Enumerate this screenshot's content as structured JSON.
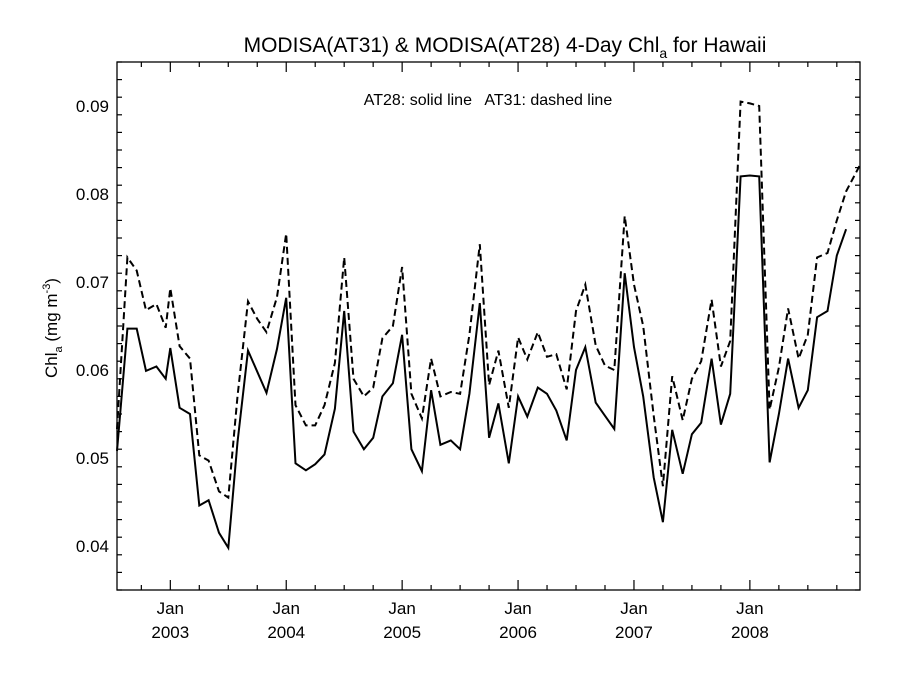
{
  "chart_data": {
    "type": "line",
    "title": "MODISA(AT31) & MODISA(AT28) 4-Day Chl",
    "title_sub": "a",
    "title_suffix": " for Hawaii",
    "annotation": "AT28: solid line   AT31: dashed line",
    "ylabel": "Chl",
    "ylabel_sub": "a",
    "ylabel_units": " (mg m",
    "ylabel_sup": "-3",
    "ylabel_close": ")",
    "xlim": [
      2002.54,
      2008.95
    ],
    "ylim": [
      0.035,
      0.095
    ],
    "yticks": [
      0.04,
      0.05,
      0.06,
      0.07,
      0.08,
      0.09
    ],
    "ytick_labels": [
      "0.04",
      "0.05",
      "0.06",
      "0.07",
      "0.08",
      "0.09"
    ],
    "xticks": [
      {
        "x": 2003,
        "month": "Jan",
        "year": "2003"
      },
      {
        "x": 2004,
        "month": "Jan",
        "year": "2004"
      },
      {
        "x": 2005,
        "month": "Jan",
        "year": "2005"
      },
      {
        "x": 2006,
        "month": "Jan",
        "year": "2006"
      },
      {
        "x": 2007,
        "month": "Jan",
        "year": "2007"
      },
      {
        "x": 2008,
        "month": "Jan",
        "year": "2008"
      }
    ],
    "series": [
      {
        "name": "AT28",
        "style": "solid",
        "color": "#000000",
        "points": [
          [
            2002.54,
            0.0508
          ],
          [
            2002.63,
            0.0647
          ],
          [
            2002.71,
            0.0647
          ],
          [
            2002.79,
            0.0599
          ],
          [
            2002.88,
            0.0604
          ],
          [
            2002.96,
            0.059
          ],
          [
            2003.0,
            0.0625
          ],
          [
            2003.08,
            0.0557
          ],
          [
            2003.17,
            0.055
          ],
          [
            2003.25,
            0.0446
          ],
          [
            2003.33,
            0.0452
          ],
          [
            2003.42,
            0.0415
          ],
          [
            2003.5,
            0.0398
          ],
          [
            2003.58,
            0.0518
          ],
          [
            2003.67,
            0.0622
          ],
          [
            2003.75,
            0.0598
          ],
          [
            2003.83,
            0.0574
          ],
          [
            2003.92,
            0.0624
          ],
          [
            2004.0,
            0.0682
          ],
          [
            2004.08,
            0.0494
          ],
          [
            2004.17,
            0.0486
          ],
          [
            2004.25,
            0.0493
          ],
          [
            2004.33,
            0.0504
          ],
          [
            2004.42,
            0.0556
          ],
          [
            2004.5,
            0.0667
          ],
          [
            2004.58,
            0.053
          ],
          [
            2004.67,
            0.051
          ],
          [
            2004.75,
            0.0523
          ],
          [
            2004.83,
            0.057
          ],
          [
            2004.92,
            0.0585
          ],
          [
            2005.0,
            0.064
          ],
          [
            2005.08,
            0.051
          ],
          [
            2005.17,
            0.0485
          ],
          [
            2005.25,
            0.0577
          ],
          [
            2005.33,
            0.0515
          ],
          [
            2005.42,
            0.052
          ],
          [
            2005.5,
            0.051
          ],
          [
            2005.58,
            0.0573
          ],
          [
            2005.67,
            0.0676
          ],
          [
            2005.75,
            0.0523
          ],
          [
            2005.83,
            0.0562
          ],
          [
            2005.92,
            0.0494
          ],
          [
            2006.0,
            0.057
          ],
          [
            2006.08,
            0.0547
          ],
          [
            2006.17,
            0.058
          ],
          [
            2006.25,
            0.0573
          ],
          [
            2006.33,
            0.0554
          ],
          [
            2006.42,
            0.052
          ],
          [
            2006.5,
            0.06
          ],
          [
            2006.58,
            0.0626
          ],
          [
            2006.67,
            0.0563
          ],
          [
            2006.75,
            0.0548
          ],
          [
            2006.83,
            0.0533
          ],
          [
            2006.92,
            0.071
          ],
          [
            2007.0,
            0.0626
          ],
          [
            2007.08,
            0.057
          ],
          [
            2007.17,
            0.0478
          ],
          [
            2007.25,
            0.0427
          ],
          [
            2007.33,
            0.0532
          ],
          [
            2007.42,
            0.0482
          ],
          [
            2007.5,
            0.0527
          ],
          [
            2007.58,
            0.054
          ],
          [
            2007.67,
            0.0613
          ],
          [
            2007.75,
            0.0538
          ],
          [
            2007.83,
            0.0573
          ],
          [
            2007.92,
            0.082
          ],
          [
            2008.0,
            0.0821
          ],
          [
            2008.08,
            0.082
          ],
          [
            2008.17,
            0.0495
          ],
          [
            2008.25,
            0.055
          ],
          [
            2008.33,
            0.0613
          ],
          [
            2008.42,
            0.0557
          ],
          [
            2008.5,
            0.0577
          ],
          [
            2008.58,
            0.066
          ],
          [
            2008.67,
            0.0667
          ],
          [
            2008.75,
            0.073
          ],
          [
            2008.83,
            0.076
          ]
        ]
      },
      {
        "name": "AT31",
        "style": "dashed",
        "color": "#000000",
        "points": [
          [
            2002.54,
            0.0533
          ],
          [
            2002.63,
            0.0728
          ],
          [
            2002.71,
            0.0713
          ],
          [
            2002.79,
            0.0668
          ],
          [
            2002.88,
            0.0675
          ],
          [
            2002.96,
            0.0648
          ],
          [
            2003.0,
            0.0693
          ],
          [
            2003.08,
            0.0627
          ],
          [
            2003.17,
            0.0613
          ],
          [
            2003.25,
            0.0503
          ],
          [
            2003.33,
            0.0497
          ],
          [
            2003.42,
            0.0462
          ],
          [
            2003.5,
            0.0455
          ],
          [
            2003.58,
            0.057
          ],
          [
            2003.67,
            0.0678
          ],
          [
            2003.75,
            0.0658
          ],
          [
            2003.83,
            0.0643
          ],
          [
            2003.92,
            0.0683
          ],
          [
            2004.0,
            0.0755
          ],
          [
            2004.08,
            0.056
          ],
          [
            2004.17,
            0.0537
          ],
          [
            2004.25,
            0.0537
          ],
          [
            2004.33,
            0.056
          ],
          [
            2004.42,
            0.0608
          ],
          [
            2004.5,
            0.0728
          ],
          [
            2004.58,
            0.059
          ],
          [
            2004.67,
            0.057
          ],
          [
            2004.75,
            0.058
          ],
          [
            2004.83,
            0.0636
          ],
          [
            2004.92,
            0.065
          ],
          [
            2005.0,
            0.0717
          ],
          [
            2005.08,
            0.0573
          ],
          [
            2005.17,
            0.0545
          ],
          [
            2005.25,
            0.0613
          ],
          [
            2005.33,
            0.057
          ],
          [
            2005.42,
            0.0575
          ],
          [
            2005.5,
            0.0573
          ],
          [
            2005.58,
            0.064
          ],
          [
            2005.67,
            0.0743
          ],
          [
            2005.75,
            0.0583
          ],
          [
            2005.83,
            0.0622
          ],
          [
            2005.92,
            0.0557
          ],
          [
            2006.0,
            0.0637
          ],
          [
            2006.08,
            0.0612
          ],
          [
            2006.17,
            0.0643
          ],
          [
            2006.25,
            0.0615
          ],
          [
            2006.33,
            0.0618
          ],
          [
            2006.42,
            0.0578
          ],
          [
            2006.5,
            0.0667
          ],
          [
            2006.58,
            0.0697
          ],
          [
            2006.67,
            0.0628
          ],
          [
            2006.75,
            0.0605
          ],
          [
            2006.83,
            0.06
          ],
          [
            2006.92,
            0.0775
          ],
          [
            2007.0,
            0.0697
          ],
          [
            2007.08,
            0.065
          ],
          [
            2007.17,
            0.0548
          ],
          [
            2007.25,
            0.0468
          ],
          [
            2007.33,
            0.0593
          ],
          [
            2007.42,
            0.0543
          ],
          [
            2007.5,
            0.059
          ],
          [
            2007.58,
            0.061
          ],
          [
            2007.67,
            0.068
          ],
          [
            2007.75,
            0.0604
          ],
          [
            2007.83,
            0.0633
          ],
          [
            2007.92,
            0.0905
          ],
          [
            2008.0,
            0.0903
          ],
          [
            2008.08,
            0.09
          ],
          [
            2008.17,
            0.0555
          ],
          [
            2008.25,
            0.0603
          ],
          [
            2008.33,
            0.067
          ],
          [
            2008.42,
            0.0613
          ],
          [
            2008.5,
            0.064
          ],
          [
            2008.58,
            0.0728
          ],
          [
            2008.67,
            0.0733
          ],
          [
            2008.75,
            0.077
          ],
          [
            2008.83,
            0.0803
          ],
          [
            2008.95,
            0.0833
          ]
        ]
      }
    ],
    "grid": false,
    "legend": "annotation text at top-center"
  }
}
